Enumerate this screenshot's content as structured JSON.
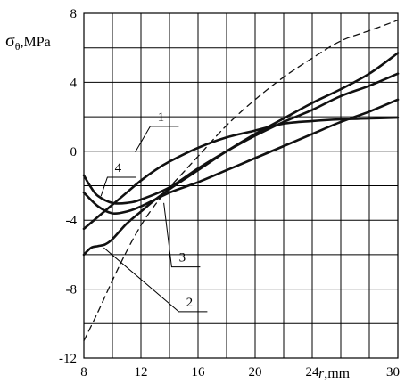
{
  "chart_data": {
    "type": "line",
    "title": "",
    "ylabel_symbol": "σ",
    "ylabel_sub": "θ",
    "ylabel_unit": ",MPa",
    "xlabel_symbol": "r",
    "xlabel_unit": ",mm",
    "xlim": [
      8,
      30
    ],
    "ylim": [
      -12,
      8
    ],
    "xticks": [
      8,
      12,
      16,
      20,
      24,
      30
    ],
    "xtick_labels": [
      "8",
      "12",
      "16",
      "20",
      "24",
      "30"
    ],
    "yticks": [
      8,
      4,
      0,
      -4,
      -8,
      -12
    ],
    "ytick_labels": [
      "8",
      "4",
      "0",
      "-4",
      "-8",
      "-12"
    ],
    "xgrid": [
      8,
      10,
      12,
      14,
      16,
      18,
      20,
      22,
      24,
      26,
      28,
      30
    ],
    "ygrid": [
      -12,
      -10,
      -8,
      -6,
      -4,
      -2,
      0,
      2,
      4,
      6,
      8
    ],
    "grid": true,
    "series": [
      {
        "name": "1",
        "style": "solid",
        "x": [
          8.0,
          9.0,
          10.0,
          11.0,
          12.0,
          13.0,
          14.0,
          16.0,
          18.0,
          20.0,
          22.0,
          24.0,
          26.0,
          28.0,
          30.0
        ],
        "y": [
          -4.5,
          -3.8,
          -3.1,
          -2.4,
          -1.7,
          -1.1,
          -0.6,
          0.2,
          0.8,
          1.2,
          1.6,
          1.75,
          1.85,
          1.9,
          1.95
        ]
      },
      {
        "name": "2",
        "style": "solid",
        "x": [
          8.0,
          8.5,
          9.0,
          9.5,
          10.0,
          11.0,
          12.0,
          13.0,
          14.0,
          16.0,
          18.0,
          20.0,
          22.0,
          24.0,
          26.0,
          28.0,
          30.0
        ],
        "y": [
          -6.0,
          -5.6,
          -5.5,
          -5.4,
          -5.1,
          -4.2,
          -3.5,
          -2.8,
          -2.2,
          -1.1,
          0.0,
          1.0,
          1.9,
          2.8,
          3.6,
          4.5,
          5.7
        ]
      },
      {
        "name": "3",
        "style": "solid",
        "x": [
          8.0,
          9.0,
          10.0,
          11.0,
          12.0,
          14.0,
          16.0,
          18.0,
          20.0,
          22.0,
          24.0,
          26.0,
          28.0,
          30.0
        ],
        "y": [
          -2.4,
          -3.2,
          -3.6,
          -3.5,
          -3.2,
          -2.4,
          -1.8,
          -1.1,
          -0.4,
          0.3,
          1.0,
          1.7,
          2.3,
          3.0
        ]
      },
      {
        "name": "4",
        "style": "solid",
        "x": [
          8.0,
          8.5,
          9.0,
          10.0,
          11.0,
          12.0,
          14.0,
          16.0,
          18.0,
          20.0,
          22.0,
          24.0,
          26.0,
          28.0,
          30.0
        ],
        "y": [
          -1.4,
          -2.1,
          -2.6,
          -3.0,
          -3.0,
          -2.8,
          -2.1,
          -1.0,
          0.0,
          0.9,
          1.7,
          2.4,
          3.2,
          3.8,
          4.5
        ]
      },
      {
        "name": "",
        "style": "dashed",
        "x": [
          8.0,
          9.0,
          10.0,
          11.0,
          12.0,
          13.0,
          14.0,
          15.0,
          16.0,
          18.0,
          20.0,
          22.0,
          24.0,
          26.0,
          28.0,
          30.0
        ],
        "y": [
          -11.0,
          -9.3,
          -7.5,
          -5.8,
          -4.3,
          -3.1,
          -2.1,
          -1.2,
          -0.3,
          1.5,
          3.0,
          4.3,
          5.4,
          6.4,
          7.0,
          7.6
        ]
      }
    ],
    "annotations": [
      {
        "text": "1",
        "label_at": [
          13.4,
          1.65
        ],
        "points_to": [
          11.6,
          -0.05
        ]
      },
      {
        "text": "4",
        "label_at": [
          10.4,
          -1.3
        ],
        "points_to": [
          9.2,
          -2.6
        ]
      },
      {
        "text": "3",
        "label_at": [
          14.9,
          -6.5
        ],
        "points_to": [
          13.6,
          -3.0
        ]
      },
      {
        "text": "2",
        "label_at": [
          15.4,
          -9.1
        ],
        "points_to": [
          9.4,
          -5.6
        ]
      }
    ]
  }
}
